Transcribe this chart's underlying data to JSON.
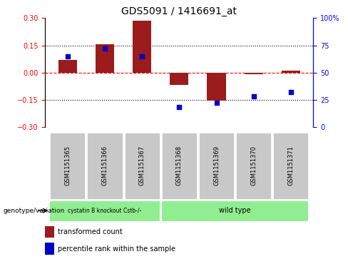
{
  "title": "GDS5091 / 1416691_at",
  "samples": [
    "GSM1151365",
    "GSM1151366",
    "GSM1151367",
    "GSM1151368",
    "GSM1151369",
    "GSM1151370",
    "GSM1151371"
  ],
  "bar_values": [
    0.07,
    0.155,
    0.285,
    -0.07,
    -0.155,
    -0.01,
    0.01
  ],
  "percentile_values": [
    0.65,
    0.72,
    0.65,
    0.18,
    0.22,
    0.28,
    0.32
  ],
  "bar_color": "#9B1C1C",
  "dot_color": "#0000CC",
  "ylim": [
    -0.3,
    0.3
  ],
  "yticks_left": [
    -0.3,
    -0.15,
    0.0,
    0.15,
    0.3
  ],
  "yticks_right": [
    0,
    25,
    50,
    75,
    100
  ],
  "hlines": [
    -0.15,
    0.0,
    0.15
  ],
  "hline_styles": [
    "dotted",
    "dashed",
    "dotted"
  ],
  "hline_colors": [
    "black",
    "red",
    "black"
  ],
  "group1_label": "cystatin B knockout Cstb-/-",
  "group2_label": "wild type",
  "group1_indices": [
    0,
    1,
    2
  ],
  "group2_indices": [
    3,
    4,
    5,
    6
  ],
  "group1_color": "#90EE90",
  "group2_color": "#90EE90",
  "genotype_label": "genotype/variation",
  "legend_bar_label": "transformed count",
  "legend_dot_label": "percentile rank within the sample",
  "bar_width": 0.5,
  "title_fontsize": 10,
  "tick_fontsize": 7,
  "label_fontsize": 7,
  "sample_gray": "#C8C8C8",
  "bg_white": "#FFFFFF"
}
